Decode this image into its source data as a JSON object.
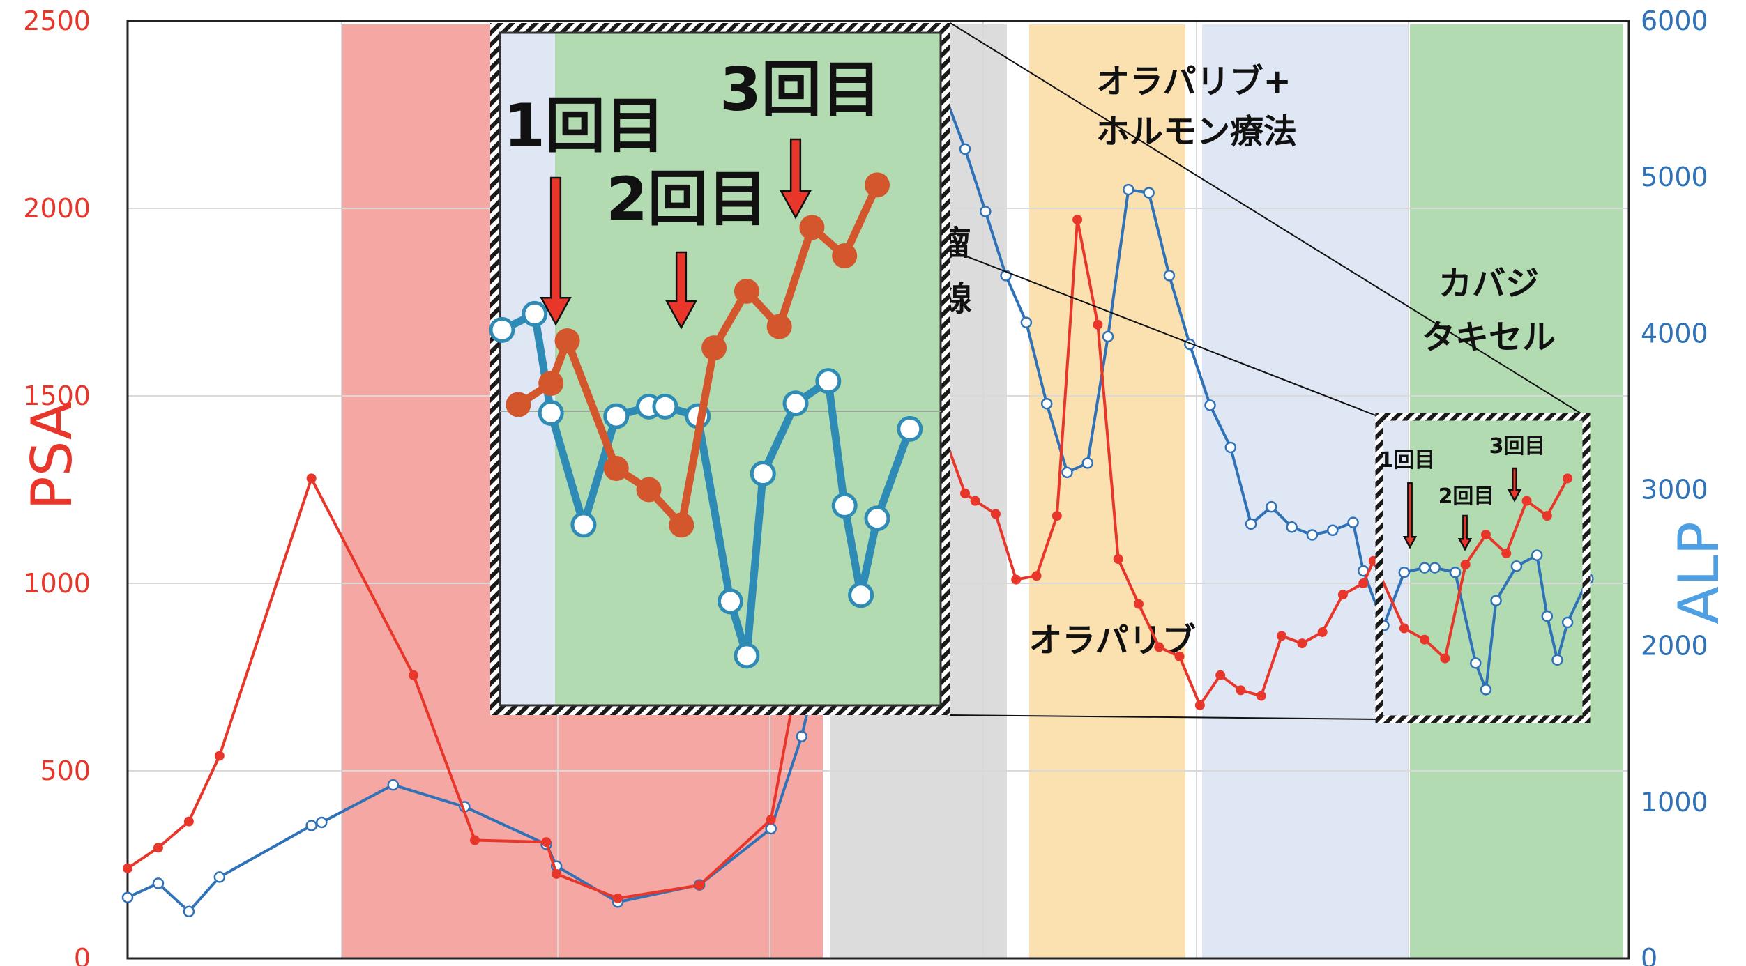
{
  "chart_data": {
    "type": "line",
    "ylabel_left": "PSA",
    "ylabel_right": "ALP",
    "ylim_left": [
      0,
      2500
    ],
    "ylim_right": [
      0,
      6000
    ],
    "yticks_left": [
      "0",
      "500",
      "1000",
      "1500",
      "2000",
      "2500"
    ],
    "yticks_right": [
      "0",
      "1000",
      "2000",
      "3000",
      "4000",
      "5000",
      "6000"
    ],
    "grid": true,
    "colors": {
      "psa": "#e8372a",
      "alp": "#2f72b8",
      "alp_axis_title": "#4ea0e3",
      "band_red": "#f4a7a3",
      "band_gray": "#dcdcdc",
      "band_orange": "#fbe0b0",
      "band_blue": "#dfe6f4",
      "band_green": "#b3dbb1",
      "arrow": "#e8372a"
    },
    "series": [
      {
        "name": "PSA",
        "axis": "left",
        "points": [
          [
            0,
            240
          ],
          [
            3,
            295
          ],
          [
            6,
            365
          ],
          [
            9,
            540
          ],
          [
            18,
            1280
          ],
          [
            28,
            755
          ],
          [
            34,
            315
          ],
          [
            41,
            310
          ],
          [
            42,
            225
          ],
          [
            48,
            160
          ],
          [
            56,
            195
          ],
          [
            63,
            370
          ],
          [
            66,
            810
          ],
          [
            70,
            1390
          ],
          [
            74,
            1800
          ],
          [
            76,
            1570
          ],
          [
            78,
            1550
          ],
          [
            80,
            1390
          ],
          [
            82,
            1240
          ],
          [
            83,
            1220
          ],
          [
            85,
            1185
          ],
          [
            87,
            1010
          ],
          [
            89,
            1020
          ],
          [
            91,
            1180
          ],
          [
            93,
            1970
          ],
          [
            95,
            1690
          ],
          [
            97,
            1065
          ],
          [
            99,
            945
          ],
          [
            101,
            830
          ],
          [
            103,
            805
          ],
          [
            105,
            675
          ],
          [
            107,
            755
          ],
          [
            109,
            715
          ],
          [
            111,
            700
          ],
          [
            113,
            860
          ],
          [
            115,
            840
          ],
          [
            117,
            870
          ],
          [
            119,
            970
          ],
          [
            121,
            1000
          ],
          [
            122,
            1060
          ],
          [
            125,
            880
          ],
          [
            127,
            850
          ],
          [
            129,
            800
          ],
          [
            131,
            1050
          ],
          [
            133,
            1130
          ],
          [
            135,
            1080
          ],
          [
            137,
            1220
          ],
          [
            139,
            1180
          ],
          [
            141,
            1280
          ]
        ]
      },
      {
        "name": "ALP",
        "axis": "right",
        "points": [
          [
            0,
            390
          ],
          [
            3,
            480
          ],
          [
            6,
            300
          ],
          [
            9,
            520
          ],
          [
            18,
            850
          ],
          [
            19,
            870
          ],
          [
            26,
            1110
          ],
          [
            33,
            970
          ],
          [
            41,
            730
          ],
          [
            42,
            590
          ],
          [
            48,
            360
          ],
          [
            56,
            470
          ],
          [
            63,
            830
          ],
          [
            66,
            1420
          ],
          [
            70,
            2540
          ],
          [
            74,
            3730
          ],
          [
            76,
            5170
          ],
          [
            78,
            4990
          ],
          [
            80,
            5530
          ],
          [
            82,
            5180
          ],
          [
            84,
            4780
          ],
          [
            86,
            4370
          ],
          [
            88,
            4070
          ],
          [
            90,
            3550
          ],
          [
            92,
            3110
          ],
          [
            94,
            3170
          ],
          [
            96,
            3980
          ],
          [
            98,
            4920
          ],
          [
            100,
            4900
          ],
          [
            102,
            4370
          ],
          [
            104,
            3930
          ],
          [
            106,
            3540
          ],
          [
            108,
            3270
          ],
          [
            110,
            2780
          ],
          [
            112,
            2890
          ],
          [
            114,
            2760
          ],
          [
            116,
            2710
          ],
          [
            118,
            2740
          ],
          [
            120,
            2790
          ],
          [
            121,
            2480
          ],
          [
            123,
            2130
          ],
          [
            125,
            2470
          ],
          [
            127,
            2500
          ],
          [
            128,
            2500
          ],
          [
            130,
            2470
          ],
          [
            132,
            1890
          ],
          [
            133,
            1720
          ],
          [
            134,
            2290
          ],
          [
            136,
            2510
          ],
          [
            138,
            2580
          ],
          [
            139,
            2190
          ],
          [
            140,
            1910
          ],
          [
            141,
            2150
          ],
          [
            143,
            2430
          ]
        ]
      }
    ],
    "treatment_labels": {
      "olaparib_hormone_line1": "オラパリブ+",
      "olaparib_hormone_line2": "ホルモン療法",
      "cabazitaxel_line1": "カバジ",
      "cabazitaxel_line2": "タキセル",
      "olaparib": "オラパリブ",
      "hidden_line1": "瘤",
      "hidden_line2": "線"
    },
    "cycle_labels": [
      "1回目",
      "2回目",
      "3回目"
    ]
  }
}
